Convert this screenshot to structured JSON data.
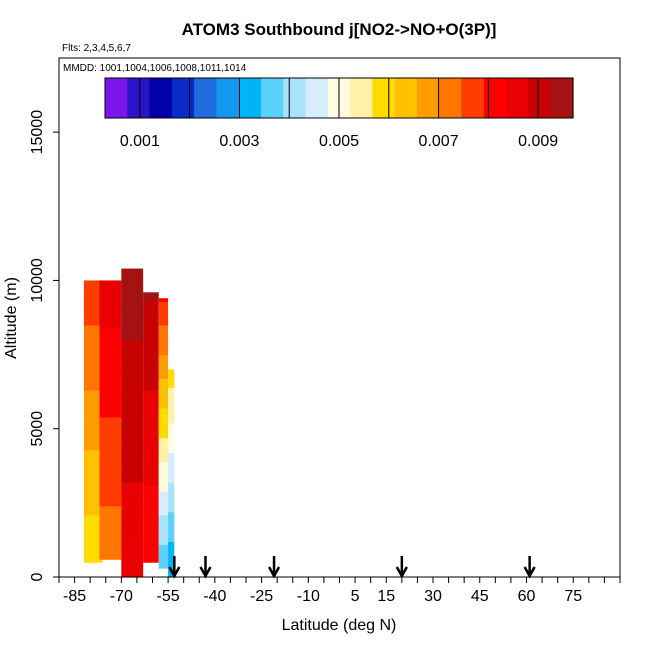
{
  "chart_data": {
    "type": "heatmap",
    "title": "ATOM3 Southbound j[NO2->NO+O(3P)]",
    "flights_label": "Flts: 2,3,4,5,6,7",
    "mmdd_label": "MMDD: 1001,1004,1006,1008,1011,1014",
    "xlabel": "Latitude (deg N)",
    "ylabel": "Altitude (m)",
    "xlim": [
      -90,
      90
    ],
    "ylim": [
      0,
      17500
    ],
    "x_ticks": [
      -85,
      -70,
      -55,
      -40,
      -25,
      -10,
      5,
      15,
      30,
      45,
      60,
      75
    ],
    "x_tick_labels": [
      "-85",
      "-70",
      "-55",
      "-40",
      "-25",
      "-10",
      "5",
      "15",
      "30",
      "45",
      "60",
      "75"
    ],
    "x_minor_ticks": [
      -90,
      -80,
      -75,
      -65,
      -60,
      -50,
      -45,
      -35,
      -30,
      -20,
      -15,
      -5,
      0,
      10,
      20,
      25,
      35,
      40,
      50,
      55,
      65,
      70,
      80,
      85,
      90
    ],
    "y_ticks": [
      0,
      5000,
      10000,
      15000
    ],
    "y_tick_labels": [
      "0",
      "5000",
      "10000",
      "15000"
    ],
    "colorbar": {
      "min": 0.0003,
      "max": 0.0097,
      "tick_values": [
        0.001,
        0.003,
        0.005,
        0.007,
        0.009
      ],
      "tick_labels": [
        "0.001",
        "0.003",
        "0.005",
        "0.007",
        "0.009"
      ],
      "boundaries": [
        0.001,
        0.002,
        0.003,
        0.004,
        0.005,
        0.006,
        0.007,
        0.008,
        0.009
      ],
      "colors": [
        "#7a16e8",
        "#2a14c8",
        "#0000a8",
        "#0a2cc6",
        "#1f6ee0",
        "#1298ee",
        "#00b4f6",
        "#5ad0fb",
        "#a8e2fb",
        "#d6eefc",
        "#fffce0",
        "#fff2a8",
        "#ffdc00",
        "#ffc000",
        "#ff9d00",
        "#ff7600",
        "#ff3c00",
        "#ff0000",
        "#e80000",
        "#c70000",
        "#a31313"
      ]
    },
    "profiles": [
      {
        "lat_min": -82,
        "lat_max": -76,
        "top": 10000,
        "bottom": 500,
        "value_top": 0.0078,
        "value_bottom": 0.0058
      },
      {
        "lat_min": -77,
        "lat_max": -70,
        "top": 10000,
        "bottom": 600,
        "value_top": 0.0086,
        "value_bottom": 0.0072
      },
      {
        "lat_min": -70,
        "lat_max": -63,
        "top": 10400,
        "bottom": 0,
        "value_top": 0.0095,
        "value_bottom": 0.0085
      },
      {
        "lat_min": -63,
        "lat_max": -58,
        "top": 9600,
        "bottom": 500,
        "value_top": 0.0093,
        "value_bottom": 0.008
      },
      {
        "lat_min": -58,
        "lat_max": -55,
        "top": 9400,
        "bottom": 300,
        "value_top": 0.008,
        "value_bottom": 0.0035
      },
      {
        "lat_min": -55,
        "lat_max": -53,
        "top": 7000,
        "bottom": 0,
        "value_top": 0.006,
        "value_bottom": 0.003
      }
    ],
    "markers": [
      {
        "label": "arrow",
        "lat": -53
      },
      {
        "label": "arrow",
        "lat": -43
      },
      {
        "label": "arrow",
        "lat": -21
      },
      {
        "label": "arrow",
        "lat": 20
      },
      {
        "label": "arrow",
        "lat": 61
      }
    ],
    "grid": false,
    "legend_placement": "top"
  }
}
